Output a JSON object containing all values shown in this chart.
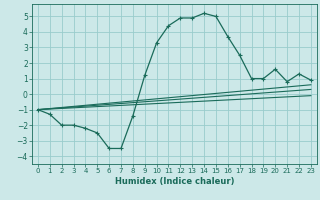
{
  "xlabel": "Humidex (Indice chaleur)",
  "bg_color": "#cce8e8",
  "grid_color": "#99cccc",
  "line_color": "#1a6b5a",
  "xlim": [
    -0.5,
    23.5
  ],
  "ylim": [
    -4.5,
    5.8
  ],
  "xticks": [
    0,
    1,
    2,
    3,
    4,
    5,
    6,
    7,
    8,
    9,
    10,
    11,
    12,
    13,
    14,
    15,
    16,
    17,
    18,
    19,
    20,
    21,
    22,
    23
  ],
  "yticks": [
    -4,
    -3,
    -2,
    -1,
    0,
    1,
    2,
    3,
    4,
    5
  ],
  "curve1_x": [
    0,
    1,
    2,
    3,
    4,
    5,
    6,
    7,
    8,
    9,
    10,
    11,
    12,
    13,
    14,
    15,
    16,
    17,
    18,
    19,
    20,
    21,
    22,
    23
  ],
  "curve1_y": [
    -1.0,
    -1.3,
    -2.0,
    -2.0,
    -2.2,
    -2.5,
    -3.5,
    -3.5,
    -1.4,
    1.2,
    3.3,
    4.4,
    4.9,
    4.9,
    5.2,
    5.0,
    3.7,
    2.5,
    1.0,
    1.0,
    1.6,
    0.8,
    1.3,
    0.9
  ],
  "line2_x": [
    0,
    23
  ],
  "line2_y": [
    -1.0,
    0.6
  ],
  "line3_x": [
    0,
    23
  ],
  "line3_y": [
    -1.0,
    0.3
  ],
  "line4_x": [
    0,
    23
  ],
  "line4_y": [
    -1.0,
    -0.1
  ]
}
